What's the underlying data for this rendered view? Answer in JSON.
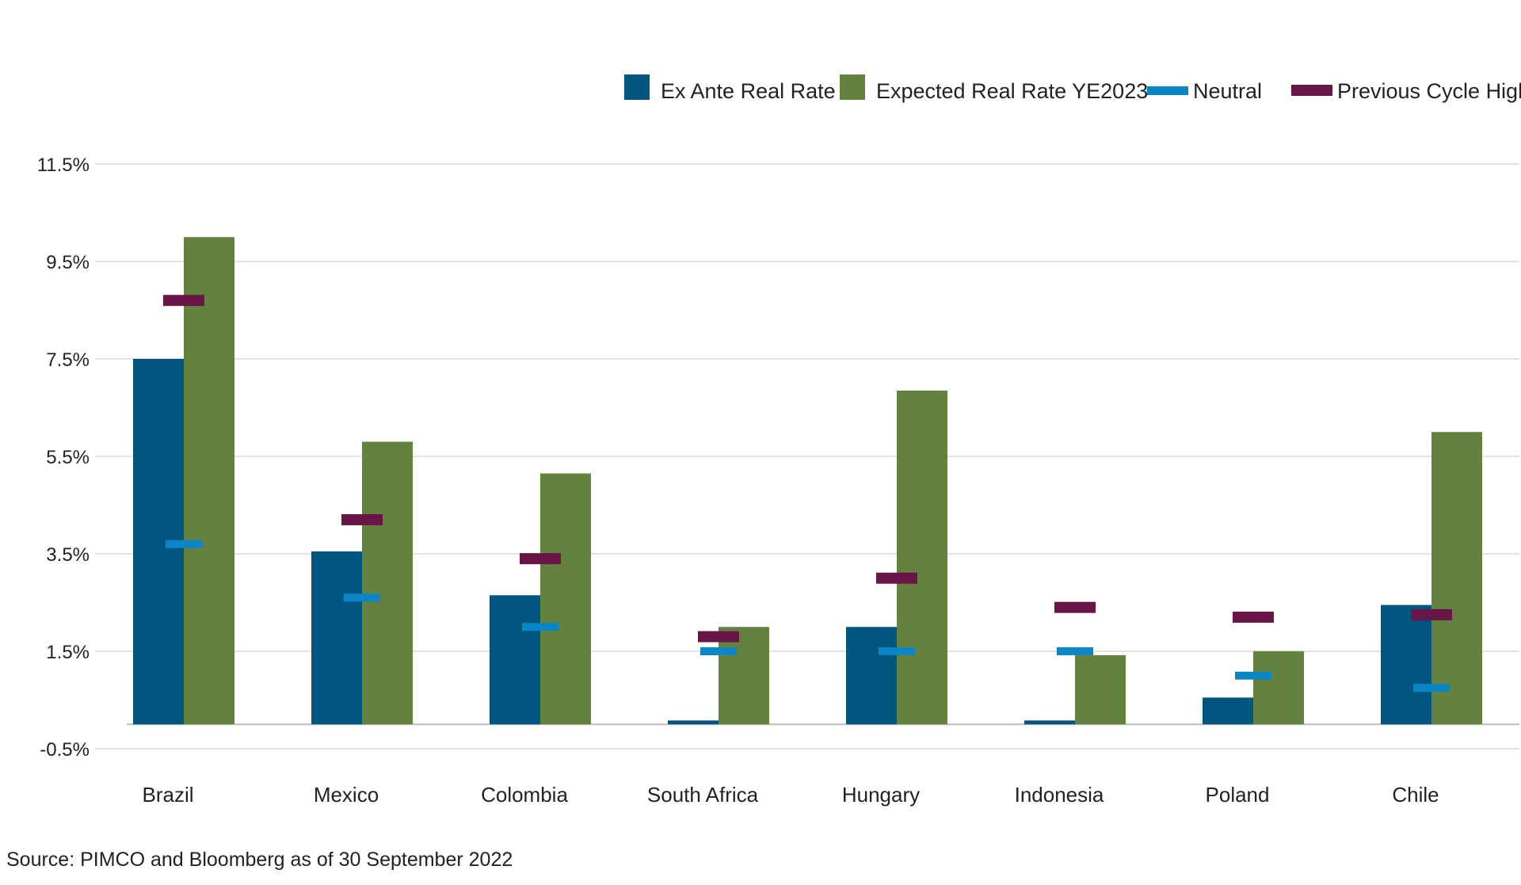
{
  "chart_data": {
    "type": "bar",
    "title": "",
    "xlabel": "",
    "ylabel": "",
    "categories": [
      "Brazil",
      "Mexico",
      "Colombia",
      "South Africa",
      "Hungary",
      "Indonesia",
      "Poland",
      "Chile"
    ],
    "series": [
      {
        "name": "Ex Ante Real Rate",
        "kind": "bar",
        "color": "#00567e",
        "values": [
          7.5,
          3.55,
          2.65,
          0.08,
          2.0,
          0.08,
          0.55,
          2.45
        ]
      },
      {
        "name": "Expected Real Rate YE2023",
        "kind": "bar",
        "color": "#62823e",
        "values": [
          10.0,
          5.8,
          5.15,
          2.0,
          6.85,
          1.42,
          1.5,
          6.0
        ]
      },
      {
        "name": "Neutral",
        "kind": "marker",
        "color": "#0a86c6",
        "values": [
          3.7,
          2.6,
          2.0,
          1.5,
          1.5,
          1.5,
          1.0,
          0.75
        ]
      },
      {
        "name": "Previous Cycle High",
        "kind": "marker",
        "color": "#6a1548",
        "values": [
          8.7,
          4.2,
          3.4,
          1.8,
          3.0,
          2.4,
          2.2,
          2.25
        ]
      }
    ],
    "y_ticks": [
      "11.5%",
      "9.5%",
      "7.5%",
      "5.5%",
      "3.5%",
      "1.5%",
      "-0.5%"
    ],
    "y_tick_values": [
      11.5,
      9.5,
      7.5,
      5.5,
      3.5,
      1.5,
      -0.5
    ],
    "ylim": [
      -0.5,
      11.5
    ],
    "grid": true,
    "legend_position": "top-right"
  },
  "source": "Source: PIMCO and Bloomberg as of 30 September 2022"
}
